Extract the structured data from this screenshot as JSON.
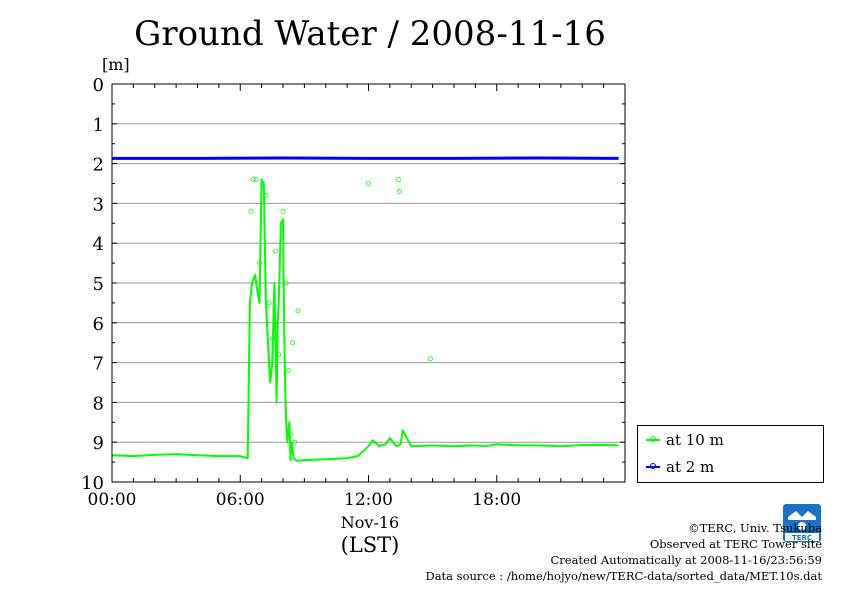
{
  "chart_data": {
    "type": "line",
    "title": "Ground Water / 2008-11-16",
    "ylabel": "[m]",
    "xlabel_date": "Nov-16",
    "xlabel": "(LST)",
    "y_reversed": true,
    "ylim": [
      0,
      10
    ],
    "y_ticks": [
      "0",
      "1",
      "2",
      "3",
      "4",
      "5",
      "6",
      "7",
      "8",
      "9",
      "10"
    ],
    "xlim_hours": [
      0,
      24
    ],
    "x_ticks": [
      {
        "hour": 0,
        "label": "00:00"
      },
      {
        "hour": 6,
        "label": "06:00"
      },
      {
        "hour": 12,
        "label": "12:00"
      },
      {
        "hour": 18,
        "label": "18:00"
      }
    ],
    "grid": true,
    "legend_position": "bottom-right-outside",
    "series": [
      {
        "name": "at 10 m",
        "color": "#00ff00",
        "x": [
          0,
          1,
          2,
          3,
          4,
          5,
          6,
          6.2,
          6.35,
          6.45,
          6.55,
          6.7,
          6.8,
          6.9,
          7.0,
          7.1,
          7.2,
          7.3,
          7.4,
          7.5,
          7.6,
          7.7,
          7.75,
          7.8,
          7.9,
          8.0,
          8.05,
          8.1,
          8.15,
          8.2,
          8.3,
          8.35,
          8.4,
          8.5,
          8.6,
          8.7,
          9,
          10,
          11,
          11.5,
          11.8,
          12.0,
          12.2,
          12.5,
          12.8,
          13.0,
          13.3,
          13.5,
          13.6,
          14,
          15,
          16,
          17,
          17.5,
          18,
          19,
          20,
          21,
          22,
          23,
          23.7
        ],
        "y": [
          9.33,
          9.35,
          9.32,
          9.3,
          9.33,
          9.35,
          9.35,
          9.38,
          9.4,
          5.5,
          5.0,
          4.8,
          5.2,
          5.5,
          2.4,
          2.5,
          5.5,
          6.5,
          7.5,
          7.0,
          5.0,
          8.0,
          6.0,
          5.5,
          3.5,
          3.4,
          6.0,
          7.5,
          8.5,
          9.0,
          8.5,
          9.45,
          9.0,
          9.4,
          9.45,
          9.47,
          9.45,
          9.43,
          9.4,
          9.35,
          9.2,
          9.1,
          8.95,
          9.1,
          9.05,
          8.9,
          9.1,
          9.05,
          8.7,
          9.1,
          9.08,
          9.1,
          9.08,
          9.1,
          9.05,
          9.08,
          9.08,
          9.1,
          9.07,
          9.07,
          9.08
        ]
      },
      {
        "name": "at 2 m",
        "color": "#0000ff",
        "x": [
          0,
          4,
          8,
          12,
          16,
          20,
          23.7
        ],
        "y": [
          1.87,
          1.87,
          1.86,
          1.87,
          1.87,
          1.86,
          1.87
        ]
      }
    ],
    "scatter_points": {
      "color": "#00ff00",
      "x": [
        6.6,
        6.75,
        6.5,
        6.9,
        7.05,
        7.2,
        7.35,
        7.5,
        7.65,
        7.8,
        8.0,
        8.15,
        8.25,
        8.35,
        8.45,
        8.55,
        8.7,
        12.0,
        13.4,
        13.45,
        14.9
      ],
      "y": [
        2.4,
        2.4,
        3.2,
        4.5,
        2.6,
        2.8,
        5.5,
        6.4,
        4.2,
        6.8,
        3.2,
        5.0,
        7.2,
        8.8,
        6.5,
        9.0,
        5.7,
        2.5,
        2.4,
        2.7,
        6.9
      ]
    }
  },
  "unit_label": "[m]",
  "legend": [
    {
      "label": "at 10 m",
      "color": "#00ff00"
    },
    {
      "label": "at 2 m",
      "color": "#0000ff"
    }
  ],
  "credits": {
    "copyright": "©TERC, Univ. Tsukuba",
    "observed": "Observed at TERC Tower site",
    "created": "Created Automatically at 2008-11-16/23:56:59",
    "source": "Data source : /home/hojyo/new/TERC-data/sorted_data/MET.10s.dat"
  },
  "logo": {
    "text": "TERC"
  }
}
